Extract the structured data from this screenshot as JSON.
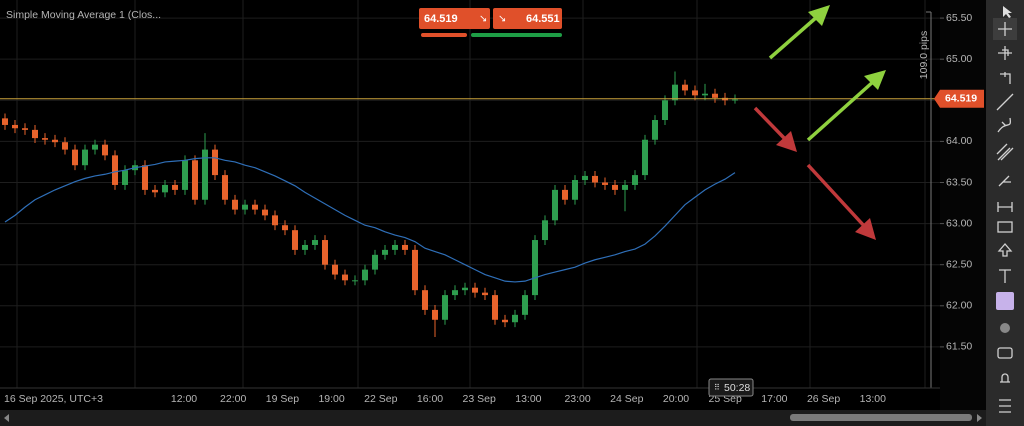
{
  "chart_data": {
    "type": "candlestick",
    "title": "Simple Moving Average 1 (Clos...",
    "sell_price": "64.519",
    "buy_price": "64.551",
    "measure_label": "109.0 pips",
    "timer_label": "50:28",
    "price_line": {
      "value": 64.519,
      "label": "64.519"
    },
    "ylim": [
      61.0,
      65.72
    ],
    "yticks": [
      {
        "value": 61.5,
        "label": "61.50"
      },
      {
        "value": 62,
        "label": "62.00"
      },
      {
        "value": 62.5,
        "label": "62.50"
      },
      {
        "value": 63,
        "label": "63.00"
      },
      {
        "value": 63.5,
        "label": "63.50"
      },
      {
        "value": 64,
        "label": "64.00"
      },
      {
        "value": 64.5,
        "label": "64.50"
      },
      {
        "value": 65,
        "label": "65.00"
      },
      {
        "value": 65.5,
        "label": "65.50"
      }
    ],
    "xtick_labels": [
      "16 Sep 2025, UTC+3",
      "12:00",
      "22:00",
      "19 Sep",
      "19:00",
      "22 Sep",
      "16:00",
      "23 Sep",
      "13:00",
      "23:00",
      "24 Sep",
      "20:00",
      "25 Sep",
      "17:00",
      "26 Sep",
      "13:00"
    ],
    "up_color": "#2e9e4f",
    "down_color": "#e8632c",
    "candles": {
      "open": [
        64.28,
        64.2,
        64.16,
        64.14,
        64.04,
        64.02,
        63.99,
        63.9,
        63.71,
        63.9,
        63.96,
        63.83,
        63.47,
        63.65,
        63.71,
        63.41,
        63.38,
        63.47,
        63.41,
        63.77,
        63.29,
        63.9,
        63.59,
        63.29,
        63.17,
        63.23,
        63.17,
        63.1,
        62.98,
        62.92,
        62.68,
        62.74,
        62.8,
        62.5,
        62.38,
        62.31,
        62.31,
        62.44,
        62.62,
        62.68,
        62.74,
        62.68,
        62.19,
        61.95,
        61.83,
        62.13,
        62.19,
        62.22,
        62.16,
        62.13,
        61.83,
        61.8,
        61.89,
        62.13,
        62.8,
        63.04,
        63.41,
        63.29,
        63.53,
        63.58,
        63.5,
        63.47,
        63.41,
        63.47,
        63.59,
        64.02,
        64.26,
        64.5,
        64.69,
        64.62,
        64.56,
        64.58,
        64.53,
        64.5
      ],
      "high": [
        64.34,
        64.26,
        64.22,
        64.2,
        64.1,
        64.08,
        64.05,
        63.96,
        63.96,
        64.02,
        64.02,
        63.89,
        63.71,
        63.77,
        63.77,
        63.47,
        63.53,
        63.53,
        63.83,
        63.83,
        64.1,
        63.96,
        63.65,
        63.35,
        63.29,
        63.29,
        63.23,
        63.16,
        63.04,
        62.98,
        62.8,
        62.86,
        62.86,
        62.56,
        62.44,
        62.37,
        62.5,
        62.68,
        62.74,
        62.8,
        62.8,
        62.74,
        62.25,
        62.01,
        62.19,
        62.25,
        62.28,
        62.28,
        62.22,
        62.19,
        61.89,
        61.95,
        62.19,
        62.86,
        63.1,
        63.47,
        63.47,
        63.59,
        63.64,
        63.64,
        63.56,
        63.53,
        63.53,
        63.65,
        64.08,
        64.32,
        64.56,
        64.85,
        64.75,
        64.68,
        64.7,
        64.64,
        64.59,
        64.57
      ],
      "low": [
        64.14,
        64.1,
        64.08,
        63.98,
        63.96,
        63.93,
        63.84,
        63.65,
        63.65,
        63.84,
        63.77,
        63.41,
        63.41,
        63.59,
        63.35,
        63.32,
        63.32,
        63.35,
        63.35,
        63.23,
        63.23,
        63.53,
        63.23,
        63.11,
        63.11,
        63.11,
        63.04,
        62.92,
        62.86,
        62.62,
        62.62,
        62.68,
        62.44,
        62.32,
        62.25,
        62.25,
        62.25,
        62.38,
        62.56,
        62.62,
        62.62,
        62.13,
        61.89,
        61.62,
        61.77,
        62.07,
        62.13,
        62.1,
        62.07,
        61.77,
        61.74,
        61.74,
        61.83,
        62.07,
        62.74,
        62.98,
        63.23,
        63.23,
        63.47,
        63.44,
        63.41,
        63.35,
        63.15,
        63.41,
        63.53,
        63.96,
        64.2,
        64.44,
        64.56,
        64.5,
        64.5,
        64.47,
        64.44,
        64.46
      ],
      "close": [
        64.2,
        64.16,
        64.14,
        64.04,
        64.02,
        63.99,
        63.9,
        63.71,
        63.9,
        63.96,
        63.83,
        63.47,
        63.65,
        63.71,
        63.41,
        63.38,
        63.47,
        63.41,
        63.77,
        63.29,
        63.9,
        63.59,
        63.29,
        63.17,
        63.23,
        63.17,
        63.1,
        62.98,
        62.92,
        62.68,
        62.74,
        62.8,
        62.5,
        62.38,
        62.31,
        62.31,
        62.44,
        62.62,
        62.68,
        62.74,
        62.68,
        62.19,
        61.95,
        61.83,
        62.13,
        62.19,
        62.22,
        62.16,
        62.13,
        61.83,
        61.8,
        61.89,
        62.13,
        62.8,
        63.04,
        63.41,
        63.29,
        63.53,
        63.58,
        63.5,
        63.47,
        63.41,
        63.47,
        63.59,
        64.02,
        64.26,
        64.5,
        64.69,
        64.62,
        64.56,
        64.58,
        64.53,
        64.5,
        64.51
      ]
    },
    "series": [
      {
        "color": "#2f6fb8",
        "values": [
          63.02,
          63.1,
          63.2,
          63.29,
          63.35,
          63.41,
          63.46,
          63.51,
          63.55,
          63.58,
          63.6,
          63.63,
          63.65,
          63.68,
          63.7,
          63.72,
          63.75,
          63.76,
          63.77,
          63.79,
          63.8,
          63.8,
          63.77,
          63.75,
          63.71,
          63.68,
          63.63,
          63.58,
          63.52,
          63.46,
          63.38,
          63.31,
          63.24,
          63.17,
          63.1,
          63.04,
          62.98,
          62.95,
          62.9,
          62.86,
          62.83,
          62.78,
          62.7,
          62.66,
          62.62,
          62.56,
          62.5,
          62.44,
          62.38,
          62.34,
          62.3,
          62.29,
          62.3,
          62.34,
          62.38,
          62.41,
          62.44,
          62.47,
          62.52,
          62.56,
          62.59,
          62.62,
          62.66,
          62.69,
          62.75,
          62.85,
          62.97,
          63.1,
          63.23,
          63.32,
          63.41,
          63.48,
          63.54,
          63.62
        ]
      }
    ]
  }
}
